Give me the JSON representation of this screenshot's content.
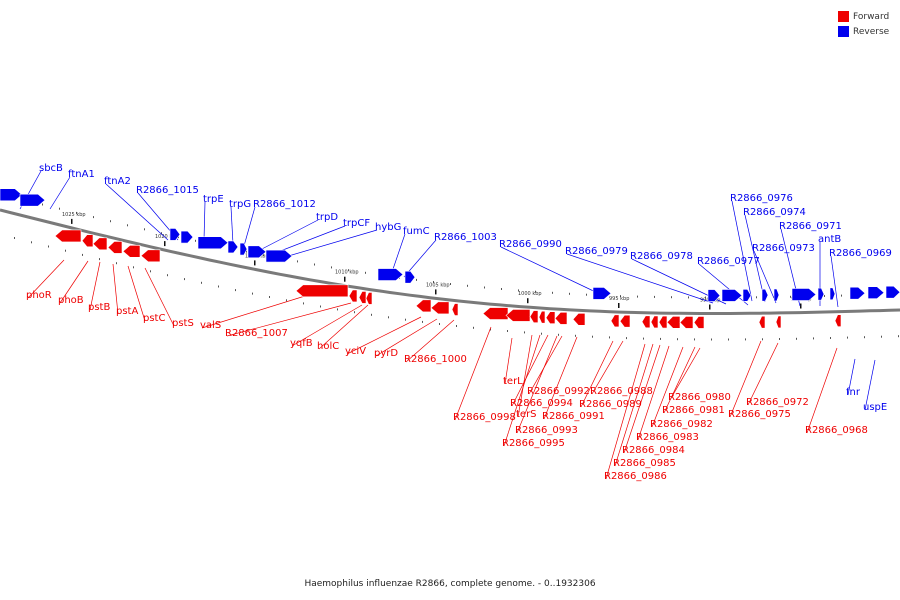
{
  "colors": {
    "forward": "#ee0000",
    "reverse": "#0000ee",
    "axis": "#7a7a7a"
  },
  "legend": [
    {
      "label": "Forward",
      "color": "#ee0000"
    },
    {
      "label": "Reverse",
      "color": "#0000ee"
    }
  ],
  "caption": "Haemophilus influenzae R2866, complete genome. - 0..1932306",
  "scale_labels": [
    "1025 kbp",
    "1020 kbp",
    "1015 kbp",
    "1010 kbp",
    "1005 kbp",
    "1000 kbp",
    "995 kbp",
    "990 kbp",
    "985 kbp"
  ],
  "reverse_genes": [
    "sbcB",
    "ftnA1",
    "ftnA2",
    "R2866_1015",
    "trpE",
    "trpG",
    "R2866_1012",
    "trpD",
    "trpCF",
    "hybG",
    "fumC",
    "R2866_1003",
    "R2866_0990",
    "R2866_0979",
    "R2866_0978",
    "R2866_0977",
    "R2866_0976",
    "R2866_0974",
    "R2866_0973",
    "R2866_0971",
    "antB",
    "R2866_0969",
    "fnr",
    "uspE"
  ],
  "forward_genes": [
    "phoR",
    "phoB",
    "pstB",
    "pstA",
    "pstC",
    "pstS",
    "valS",
    "R2866_1007",
    "yqfB",
    "holC",
    "yciV",
    "pyrD",
    "R2866_1000",
    "R2866_0998",
    "terL",
    "terS",
    "R2866_0995",
    "R2866_0994",
    "R2866_0993",
    "R2866_0992",
    "R2866_0991",
    "R2866_0989",
    "R2866_0988",
    "R2866_0986",
    "R2866_0985",
    "R2866_0984",
    "R2866_0983",
    "R2866_0982",
    "R2866_0981",
    "R2866_0980",
    "R2866_0975",
    "R2866_0972",
    "R2866_0968"
  ]
}
